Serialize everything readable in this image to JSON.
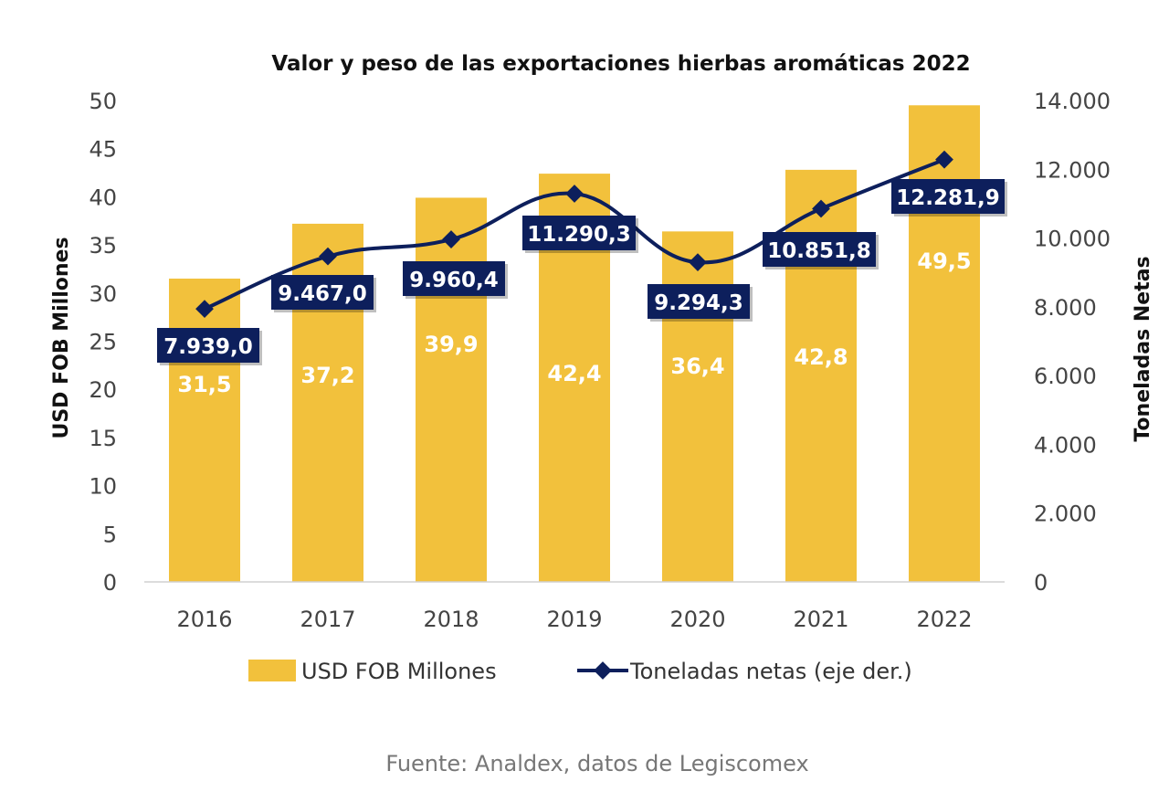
{
  "chart_data": {
    "type": "bar",
    "title": "Valor y peso de las exportaciones hierbas aromáticas 2022",
    "categories": [
      "2016",
      "2017",
      "2018",
      "2019",
      "2020",
      "2021",
      "2022"
    ],
    "ylabel": "USD FOB Millones",
    "y2label": "Toneladas Netas",
    "ylim": [
      0,
      50
    ],
    "y2lim": [
      0,
      14000
    ],
    "yticks": [
      "0",
      "5",
      "10",
      "15",
      "20",
      "25",
      "30",
      "35",
      "40",
      "45",
      "50"
    ],
    "y2ticks": [
      "0",
      "2.000",
      "4.000",
      "6.000",
      "8.000",
      "10.000",
      "12.000",
      "14.000"
    ],
    "grid": false,
    "legend_placement": "bottom",
    "series": [
      {
        "name": "USD FOB Millones",
        "type": "bar",
        "axis": "left",
        "color": "#F2C13C",
        "values": [
          31.5,
          37.2,
          39.9,
          42.4,
          36.4,
          42.8,
          49.5
        ],
        "labels": [
          "31,5",
          "37,2",
          "39,9",
          "42,4",
          "36,4",
          "42,8",
          "49,5"
        ]
      },
      {
        "name": "Toneladas netas (eje der.)",
        "type": "line",
        "axis": "right",
        "color": "#0D1F5C",
        "values": [
          7939.0,
          9467.0,
          9960.4,
          11290.3,
          9294.3,
          10851.8,
          12281.9
        ],
        "labels": [
          "7.939,0",
          "9.467,0",
          "9.960,4",
          "11.290,3",
          "9.294,3",
          "10.851,8",
          "12.281,9"
        ]
      }
    ],
    "source": "Fuente: Analdex, datos de Legiscomex"
  }
}
